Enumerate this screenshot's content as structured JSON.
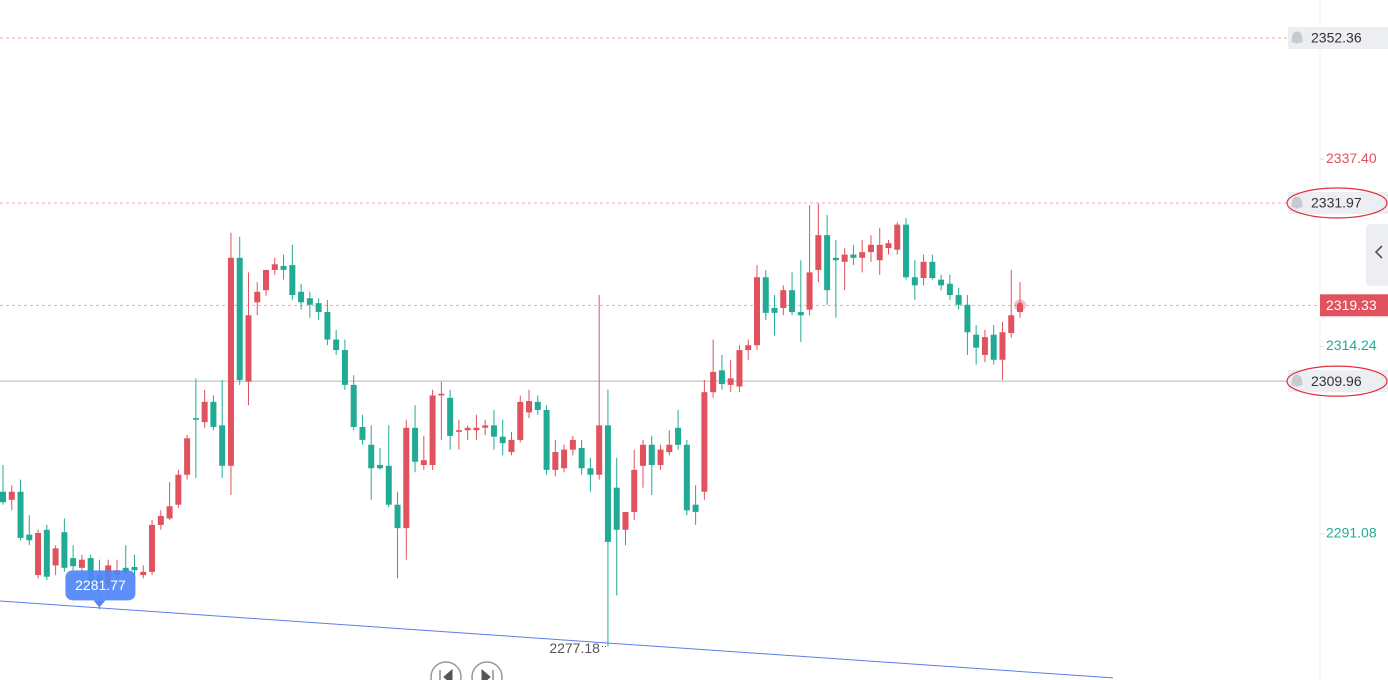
{
  "chart_data": {
    "type": "candlestick",
    "ylim": [
      2273.04,
      2357.05
    ],
    "yticks": [
      {
        "value": 2337.4,
        "label": "2337.40"
      },
      2314.24,
      2291.08
    ],
    "ytick_colors": [
      "#e0525e",
      "#22ab94",
      "#22ab94"
    ],
    "up_color": "#e0525e",
    "down_color": "#22ab94",
    "open": [
      2296.3,
      2295.3,
      2296.3,
      2291.0,
      2286.0,
      2291.6,
      2287.2,
      2291.3,
      2288.1,
      2286.9,
      2288.1,
      2286.0,
      2284.8,
      2286.0,
      2286.9,
      2287.0,
      2286.0,
      2286.4,
      2292.2,
      2293.0,
      2294.7,
      2298.4,
      2305.4,
      2304.9,
      2307.4,
      2304.5,
      2299.5,
      2325.2,
      2309.9,
      2319.7,
      2321.2,
      2323.7,
      2324.2,
      2324.3,
      2321.0,
      2320.2,
      2319.6,
      2318.5,
      2315.1,
      2313.8,
      2309.5,
      2304.3,
      2302.1,
      2299.6,
      2299.5,
      2294.7,
      2291.8,
      2304.2,
      2299.6,
      2299.6,
      2308.2,
      2307.9,
      2303.7,
      2303.9,
      2303.9,
      2304.2,
      2304.5,
      2303.1,
      2301.2,
      2302.7,
      2306.1,
      2307.4,
      2306.4,
      2299.0,
      2299.2,
      2301.5,
      2301.7,
      2299.2,
      2298.4,
      2304.5,
      2296.8,
      2291.6,
      2293.8,
      2299.5,
      2302.1,
      2299.6,
      2301.2,
      2304.2,
      2302.1,
      2294.7,
      2296.3,
      2308.6,
      2311.3,
      2309.5,
      2309.3,
      2313.8,
      2314.4,
      2322.8,
      2319.0,
      2319.0,
      2321.2,
      2318.5,
      2318.8,
      2323.7,
      2328.0,
      2325.2,
      2324.7,
      2325.6,
      2325.2,
      2325.9,
      2324.9,
      2326.4,
      2326.2,
      2329.3,
      2322.8,
      2322.7,
      2324.7,
      2322.5,
      2322.0,
      2320.6,
      2319.4,
      2315.7,
      2313.2,
      2315.7,
      2312.6,
      2315.9,
      2318.5
    ],
    "high": [
      2299.6,
      2297.1,
      2297.8,
      2293.4,
      2291.6,
      2292.2,
      2289.7,
      2293.0,
      2289.7,
      2288.5,
      2288.5,
      2287.9,
      2287.9,
      2287.9,
      2289.7,
      2288.5,
      2287.2,
      2292.8,
      2294.0,
      2297.5,
      2299.0,
      2303.3,
      2310.3,
      2308.9,
      2308.2,
      2310.1,
      2328.3,
      2327.8,
      2323.4,
      2322.2,
      2323.4,
      2325.2,
      2325.6,
      2326.8,
      2322.0,
      2321.0,
      2320.2,
      2320.0,
      2316.3,
      2315.1,
      2310.7,
      2305.8,
      2304.5,
      2301.7,
      2304.5,
      2296.3,
      2305.2,
      2307.0,
      2303.2,
      2308.9,
      2309.9,
      2308.9,
      2305.2,
      2304.5,
      2305.8,
      2305.2,
      2306.4,
      2305.2,
      2303.7,
      2308.2,
      2308.9,
      2308.2,
      2307.0,
      2302.7,
      2302.1,
      2303.2,
      2302.7,
      2300.5,
      2320.6,
      2308.9,
      2300.5,
      2293.8,
      2301.5,
      2302.7,
      2303.2,
      2302.1,
      2303.9,
      2306.4,
      2302.7,
      2297.1,
      2310.1,
      2315.1,
      2313.2,
      2312.6,
      2314.4,
      2315.1,
      2324.3,
      2323.7,
      2320.6,
      2321.8,
      2323.4,
      2324.9,
      2331.7,
      2331.9,
      2330.5,
      2327.4,
      2326.4,
      2326.8,
      2327.4,
      2328.0,
      2328.9,
      2327.4,
      2329.6,
      2330.1,
      2324.9,
      2325.6,
      2325.6,
      2323.1,
      2323.1,
      2321.5,
      2320.6,
      2316.9,
      2316.3,
      2316.9,
      2317.3,
      2323.7,
      2322.2
    ],
    "low": [
      2294.7,
      2294.0,
      2290.3,
      2289.7,
      2285.6,
      2285.4,
      2286.0,
      2286.4,
      2286.6,
      2286.0,
      2283.9,
      2281.77,
      2283.5,
      2285.4,
      2286.0,
      2285.4,
      2285.6,
      2286.0,
      2291.6,
      2292.8,
      2294.3,
      2297.8,
      2298.0,
      2304.2,
      2303.9,
      2298.0,
      2295.9,
      2309.5,
      2307.0,
      2318.1,
      2320.5,
      2323.1,
      2322.5,
      2320.0,
      2318.8,
      2317.8,
      2317.5,
      2314.4,
      2313.2,
      2308.9,
      2303.9,
      2302.1,
      2295.3,
      2299.0,
      2294.4,
      2285.6,
      2287.9,
      2298.7,
      2299.0,
      2299.0,
      2302.7,
      2301.5,
      2301.5,
      2302.7,
      2302.7,
      2303.3,
      2301.5,
      2300.8,
      2300.8,
      2302.4,
      2305.4,
      2305.8,
      2298.4,
      2298.2,
      2298.7,
      2300.8,
      2298.4,
      2296.3,
      2297.8,
      2277.18,
      2283.5,
      2289.7,
      2292.8,
      2296.8,
      2295.9,
      2299.0,
      2300.8,
      2301.5,
      2293.4,
      2292.2,
      2295.3,
      2307.9,
      2308.9,
      2308.6,
      2308.6,
      2312.6,
      2313.8,
      2317.5,
      2315.6,
      2318.1,
      2318.1,
      2314.8,
      2318.1,
      2322.2,
      2319.4,
      2317.8,
      2321.2,
      2324.3,
      2323.4,
      2324.7,
      2323.1,
      2325.6,
      2325.6,
      2322.5,
      2320.0,
      2321.8,
      2322.5,
      2321.2,
      2320.0,
      2318.8,
      2313.2,
      2312.0,
      2312.3,
      2312.0,
      2310.1,
      2315.3,
      2317.8
    ],
    "close": [
      2295.0,
      2296.3,
      2290.6,
      2290.3,
      2291.2,
      2285.8,
      2289.3,
      2286.9,
      2287.1,
      2287.9,
      2284.2,
      2284.8,
      2287.2,
      2286.6,
      2286.4,
      2286.6,
      2286.4,
      2292.2,
      2293.3,
      2294.5,
      2298.4,
      2302.9,
      2305.2,
      2307.4,
      2304.3,
      2299.5,
      2325.2,
      2310.1,
      2318.1,
      2321.0,
      2323.7,
      2324.4,
      2323.7,
      2320.6,
      2319.7,
      2319.4,
      2318.5,
      2315.1,
      2313.8,
      2309.5,
      2304.3,
      2302.7,
      2299.2,
      2299.2,
      2294.7,
      2291.8,
      2304.2,
      2300.0,
      2300.2,
      2308.2,
      2308.4,
      2303.2,
      2303.9,
      2304.2,
      2304.2,
      2304.5,
      2303.1,
      2302.3,
      2302.7,
      2307.4,
      2307.5,
      2306.4,
      2299.0,
      2301.2,
      2301.5,
      2302.7,
      2299.2,
      2298.4,
      2304.5,
      2290.1,
      2291.6,
      2293.8,
      2299.0,
      2302.1,
      2299.6,
      2301.5,
      2302.1,
      2302.1,
      2294.0,
      2293.8,
      2308.6,
      2311.1,
      2309.6,
      2310.3,
      2313.8,
      2314.4,
      2322.8,
      2318.4,
      2318.4,
      2321.2,
      2318.5,
      2318.1,
      2323.4,
      2328.0,
      2321.2,
      2324.9,
      2325.6,
      2325.2,
      2325.9,
      2326.8,
      2326.8,
      2327.0,
      2329.3,
      2322.8,
      2321.8,
      2324.7,
      2322.7,
      2321.8,
      2320.6,
      2319.4,
      2316.0,
      2314.1,
      2315.4,
      2312.6,
      2316.0,
      2318.1,
      2319.33
    ],
    "price_lines": [
      {
        "value": 2352.36,
        "style": "dashed",
        "color": "#f2a7ae",
        "circled": false,
        "current": false
      },
      {
        "value": 2331.97,
        "style": "dashed",
        "color": "#f2a7ae",
        "circled": true,
        "current": false
      },
      {
        "value": 2319.33,
        "style": "dashed",
        "color": "#f2a7ae",
        "circled": false,
        "current": true
      },
      {
        "value": 2309.96,
        "style": "solid",
        "color": "#b8b8b8",
        "circled": true,
        "current": false
      }
    ],
    "trendline": {
      "values": [
        2282.8,
        2273.3
      ],
      "color": "#5b7fe8"
    }
  }
}
